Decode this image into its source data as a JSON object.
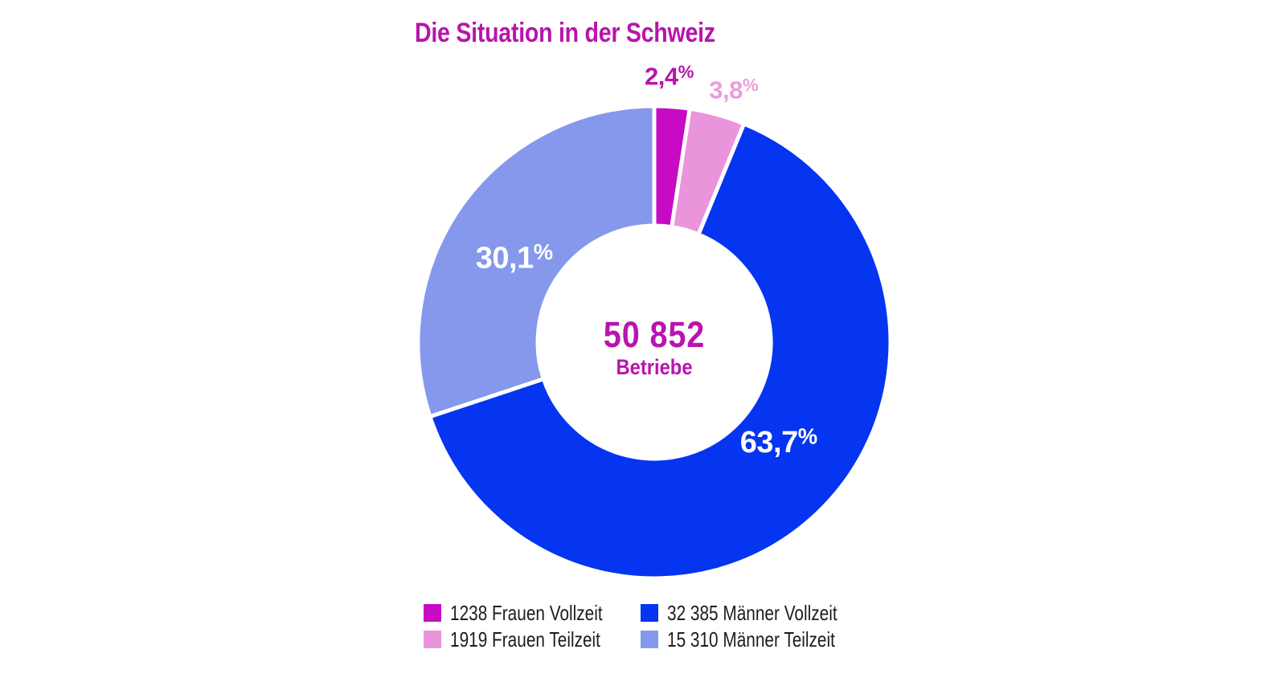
{
  "colors": {
    "background": "#ffffff",
    "title_text": "#b715ac",
    "center_text": "#bb12b0",
    "legend_text": "#1d1d1b",
    "gap_stroke": "#ffffff"
  },
  "chart_data": {
    "type": "pie",
    "donut": true,
    "title": "Die Situation in der Schweiz",
    "center_value_label": "50 852",
    "center_sub_label": "Betriebe",
    "total": 50852,
    "total_unit": "Betriebe",
    "legend_position": "bottom",
    "grid": false,
    "slices": [
      {
        "key": "frauen-vollzeit",
        "legend_label": "1238 Frauen Vollzeit",
        "value": 1238,
        "pct": 2.4,
        "pct_label": "2,4%",
        "color": "#c70bc4",
        "pct_label_color": "#b715ac",
        "pct_label_placement": "outside"
      },
      {
        "key": "frauen-teilzeit",
        "legend_label": "1919 Frauen Teilzeit",
        "value": 1919,
        "pct": 3.8,
        "pct_label": "3,8%",
        "color": "#ea94dc",
        "pct_label_color": "#ee9cdc",
        "pct_label_placement": "outside"
      },
      {
        "key": "maenner-vollzeit",
        "legend_label": "32 385 Männer Vollzeit",
        "value": 32385,
        "pct": 63.7,
        "pct_label": "63,7%",
        "color": "#0535f0",
        "pct_label_color": "#ffffff",
        "pct_label_placement": "inside"
      },
      {
        "key": "maenner-teilzeit",
        "legend_label": "15 310 Männer Teilzeit",
        "value": 15310,
        "pct": 30.1,
        "pct_label": "30,1%",
        "color": "#8598eb",
        "pct_label_color": "#ffffff",
        "pct_label_placement": "inside"
      }
    ]
  }
}
